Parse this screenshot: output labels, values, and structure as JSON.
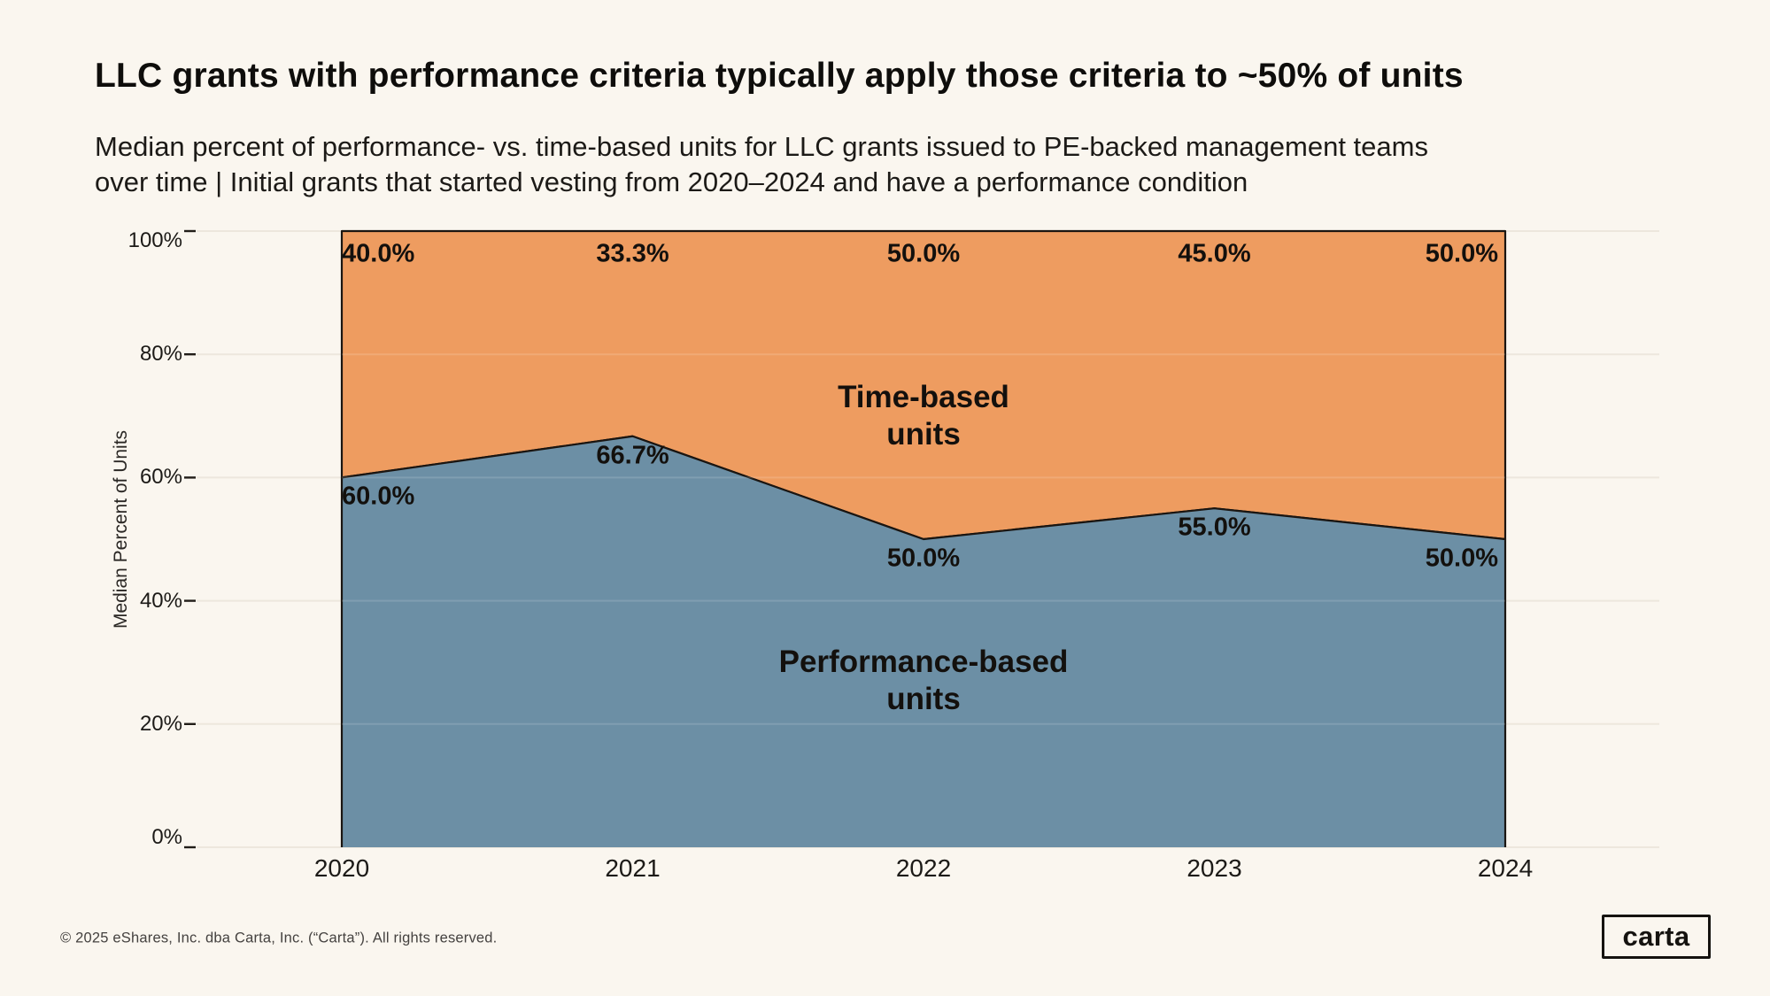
{
  "header": {
    "title": "LLC grants with performance criteria typically apply those criteria to ~50% of units",
    "subtitle_line1": "Median percent of performance- vs. time-based units for LLC grants issued to PE-backed management teams",
    "subtitle_line2": "over time | Initial grants that started vesting from 2020–2024 and have a performance condition"
  },
  "chart_data": {
    "type": "area",
    "stacked": true,
    "categories": [
      "2020",
      "2021",
      "2022",
      "2023",
      "2024"
    ],
    "series": [
      {
        "name": "Performance-based units",
        "values": [
          60.0,
          66.7,
          50.0,
          55.0,
          50.0
        ],
        "labels": [
          "60.0%",
          "66.7%",
          "50.0%",
          "55.0%",
          "50.0%"
        ],
        "color": "#6C8FA5",
        "label_side": "below"
      },
      {
        "name": "Time-based units",
        "values": [
          40.0,
          33.3,
          50.0,
          45.0,
          50.0
        ],
        "labels": [
          "40.0%",
          "33.3%",
          "50.0%",
          "45.0%",
          "50.0%"
        ],
        "color": "#EE9C60",
        "label_side": "top"
      }
    ],
    "annotations": [
      {
        "lines": [
          "Time-based",
          "units"
        ],
        "x": "2022",
        "y": 70
      },
      {
        "lines": [
          "Performance-based",
          "units"
        ],
        "x": "2022",
        "y": 27
      }
    ],
    "xlabel": "",
    "ylabel": "Median Percent of Units",
    "yticks": [
      "100%",
      "80%",
      "60%",
      "40%",
      "20%",
      "0%"
    ],
    "ylim": [
      0,
      100
    ],
    "grid": true,
    "legend": "none",
    "colors": {
      "background": "#FAF6EF",
      "outline": "#1A1511",
      "gridline": "#EDE7DD"
    }
  },
  "footer": {
    "copyright": "© 2025 eShares, Inc. dba Carta, Inc. (“Carta”). All rights reserved."
  },
  "logo": {
    "text": "carta"
  }
}
